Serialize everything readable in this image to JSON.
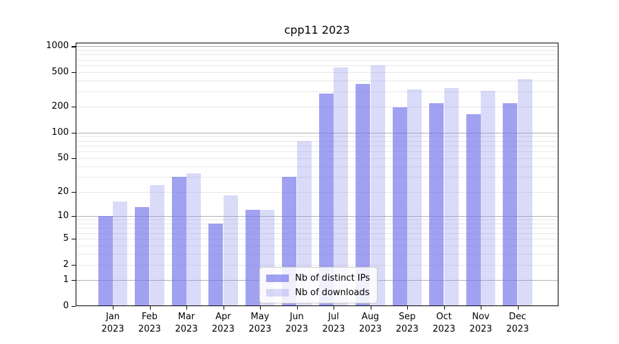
{
  "title": "cpp11 2023",
  "chart_data": {
    "type": "bar",
    "title": "cpp11 2023",
    "categories": [
      "Jan 2023",
      "Feb 2023",
      "Mar 2023",
      "Apr 2023",
      "May 2023",
      "Jun 2023",
      "Jul 2023",
      "Aug 2023",
      "Sep 2023",
      "Oct 2023",
      "Nov 2023",
      "Dec 2023"
    ],
    "series": [
      {
        "name": "Nb of distinct IPs",
        "color": "#a1a1f0",
        "fill": "rgba(110,110,235,0.65)",
        "values": [
          10,
          13,
          30,
          8,
          12,
          30,
          285,
          365,
          195,
          220,
          165,
          220
        ]
      },
      {
        "name": "Nb of downloads",
        "color": "#dadaf9",
        "fill": "rgba(140,140,235,0.32)",
        "values": [
          15,
          24,
          33,
          18,
          12,
          80,
          565,
          600,
          315,
          330,
          305,
          420
        ]
      }
    ],
    "yscale": "log1p",
    "yticks": [
      0,
      1,
      2,
      5,
      10,
      20,
      50,
      100,
      200,
      500,
      1000
    ],
    "ylim": [
      0,
      1100
    ],
    "xlabel": "",
    "ylabel": "",
    "grid": "horizontal major (decades, darker) + minor (lighter)",
    "legend_position": "lower center, inside plot",
    "colors": {
      "grid_major": "#b1b1b1",
      "grid_minor": "#e7e7e7",
      "axis": "#000000",
      "background": "#ffffff"
    }
  }
}
